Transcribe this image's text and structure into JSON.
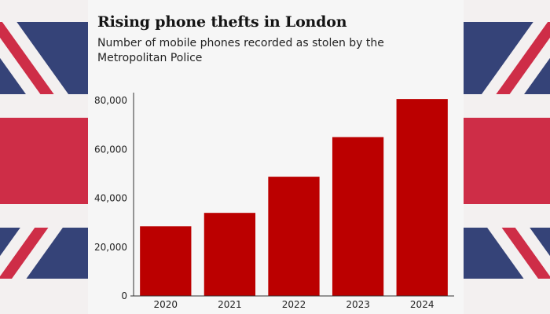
{
  "chart_data": {
    "type": "bar",
    "title": "Rising phone thefts in London",
    "subtitle": "Number of mobile phones recorded as stolen by the Metropolitan Police",
    "categories": [
      "2020",
      "2021",
      "2022",
      "2023",
      "2024"
    ],
    "values": [
      28500,
      34000,
      48800,
      65000,
      80600
    ],
    "xlabel": "",
    "ylabel": "",
    "ylim": [
      0,
      80000
    ],
    "yticks": [
      "0",
      "20,000",
      "40,000",
      "60,000",
      "80,000"
    ],
    "ytick_values": [
      0,
      20000,
      40000,
      60000,
      80000
    ],
    "grid": false,
    "bar_color": "#bb0000",
    "background_color": "#f6f6f6",
    "legend": "none"
  },
  "flag_colors": {
    "blue": "#1a2a66",
    "red": "#c8102e",
    "white": "#f2eeee"
  }
}
